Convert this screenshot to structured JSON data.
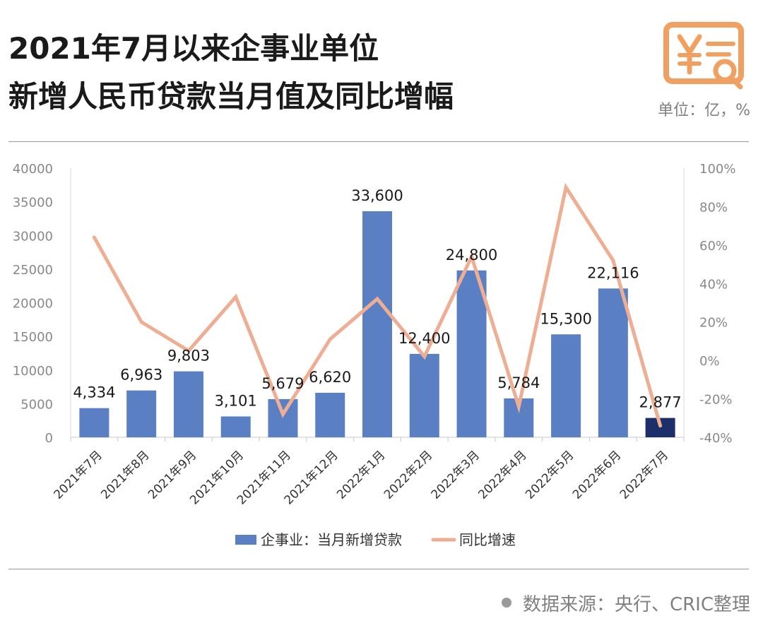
{
  "title_line1": "2021年7月以来企事业单位",
  "title_line2": "新增人民币贷款当月值及同比增幅",
  "unit_label": "单位：亿，%",
  "source": "数据来源：央行、CRIC整理",
  "icon": "yuan-receipt-search-icon",
  "colors": {
    "bar": "#5b7fc3",
    "bar_last": "#1c2f6b",
    "line": "#eeae94",
    "accent": "#f0a060"
  },
  "chart_data": {
    "type": "bar",
    "categories": [
      "2021年7月",
      "2021年8月",
      "2021年9月",
      "2021年10月",
      "2021年11月",
      "2021年12月",
      "2022年1月",
      "2022年2月",
      "2022年3月",
      "2022年4月",
      "2022年5月",
      "2022年6月",
      "2022年7月"
    ],
    "series": [
      {
        "name": "企事业：当月新增贷款",
        "type": "bar",
        "axis": "left",
        "values": [
          4334,
          6963,
          9803,
          3101,
          5679,
          6620,
          33600,
          12400,
          24800,
          5784,
          15300,
          22116,
          2877
        ],
        "labels": [
          "4,334",
          "6,963",
          "9,803",
          "3,101",
          "5,679",
          "6,620",
          "33,600",
          "12,400",
          "24,800",
          "5,784",
          "15,300",
          "22,116",
          "2,877"
        ]
      },
      {
        "name": "同比增速",
        "type": "line",
        "axis": "right",
        "values": [
          64,
          20,
          5,
          33,
          -28,
          11,
          32,
          2,
          54,
          -24,
          90,
          52,
          -34
        ]
      }
    ],
    "y_left": {
      "min": 0,
      "max": 40000,
      "ticks": [
        "0",
        "5000",
        "10000",
        "15000",
        "20000",
        "25000",
        "30000",
        "35000",
        "40000"
      ]
    },
    "y_right": {
      "min": -40,
      "max": 100,
      "ticks": [
        "-40%",
        "-20%",
        "0%",
        "20%",
        "40%",
        "60%",
        "80%",
        "100%"
      ]
    },
    "legend_position": "bottom",
    "grid": false
  }
}
